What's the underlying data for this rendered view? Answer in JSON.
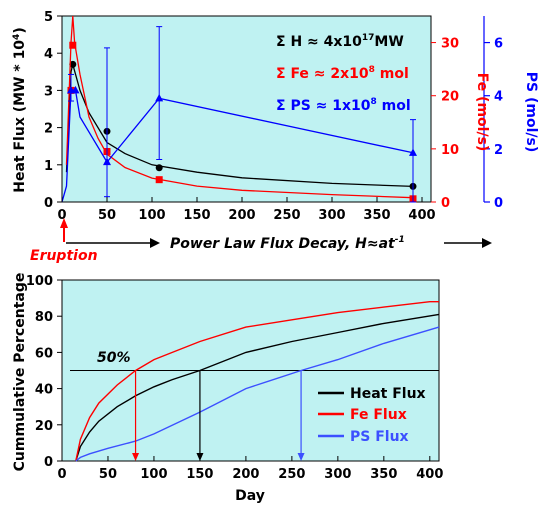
{
  "top_chart": {
    "ylabel_left": "Heat Flux (MW * 10",
    "ylabel_left_sup": "4",
    "ylabel_left_end": ")",
    "ylabel_fe": "Fe (mol/s)",
    "ylabel_ps": "PS (mol/s)",
    "annotations": {
      "h_sum": "Σ H   ≈ 4x10",
      "h_sup": "17",
      "h_unit": "MW",
      "fe_sum": "Σ Fe ≈ 2x10",
      "fe_sup": "8",
      "fe_unit": " mol",
      "ps_sum": "Σ PS ≈ 1x10",
      "ps_sup": "8",
      "ps_unit": " mol"
    },
    "eruption_label": "Eruption",
    "decay_label": "Power Law Flux Decay, H≈at",
    "decay_sup": "-1"
  },
  "bottom_chart": {
    "ylabel": "Cummulative Percentage",
    "xlabel": "Day",
    "fifty_label": "50%",
    "legend": [
      "Heat Flux",
      "Fe Flux",
      "PS Flux"
    ]
  },
  "colors": {
    "background": "#bff2f2",
    "heat": "#000000",
    "fe": "#ff0000",
    "ps": "#0000ff"
  },
  "chart_data": [
    {
      "type": "line",
      "x_ticks": [
        0,
        50,
        100,
        150,
        200,
        250,
        300,
        350,
        400
      ],
      "xlim": [
        0,
        410
      ],
      "y_left": {
        "ylim": [
          0,
          5
        ],
        "ticks": [
          0,
          1,
          2,
          3,
          4,
          5
        ]
      },
      "y_fe": {
        "ylim": [
          0,
          35
        ],
        "ticks": [
          0,
          10,
          20,
          30
        ]
      },
      "y_ps": {
        "ylim": [
          0,
          7
        ],
        "ticks": [
          0,
          2,
          4,
          6
        ]
      },
      "series": [
        {
          "name": "Heat Flux",
          "axis": "left",
          "curve": [
            [
              5,
              0.8
            ],
            [
              10,
              3.5
            ],
            [
              12,
              3.7
            ],
            [
              20,
              3.0
            ],
            [
              30,
              2.4
            ],
            [
              50,
              1.6
            ],
            [
              70,
              1.3
            ],
            [
              100,
              1.0
            ],
            [
              150,
              0.8
            ],
            [
              200,
              0.65
            ],
            [
              300,
              0.5
            ],
            [
              390,
              0.42
            ]
          ],
          "markers": [
            [
              10,
              3.0
            ],
            [
              12,
              3.7
            ],
            [
              50,
              1.9
            ],
            [
              108,
              0.92
            ],
            [
              390,
              0.42
            ]
          ]
        },
        {
          "name": "Fe Flux",
          "axis": "fe",
          "curve": [
            [
              5,
              7
            ],
            [
              10,
              30
            ],
            [
              12,
              35
            ],
            [
              14,
              30
            ],
            [
              20,
              24
            ],
            [
              30,
              16
            ],
            [
              40,
              12
            ],
            [
              50,
              9
            ],
            [
              70,
              6.5
            ],
            [
              100,
              4.5
            ],
            [
              150,
              3.0
            ],
            [
              200,
              2.2
            ],
            [
              300,
              1.4
            ],
            [
              390,
              0.8
            ]
          ],
          "markers": [
            [
              10,
              21
            ],
            [
              12,
              29.5
            ],
            [
              50,
              9.5
            ],
            [
              108,
              4.2
            ],
            [
              390,
              0.6
            ]
          ]
        },
        {
          "name": "PS Flux",
          "axis": "ps",
          "curve": [
            [
              0,
              0
            ],
            [
              5,
              0.6
            ],
            [
              10,
              4.2
            ],
            [
              15,
              4.2
            ],
            [
              20,
              3.2
            ],
            [
              50,
              1.5
            ],
            [
              108,
              3.9
            ],
            [
              390,
              1.85
            ]
          ],
          "markers": [
            [
              10,
              4.2
            ],
            [
              15,
              4.2
            ],
            [
              50,
              1.5
            ],
            [
              108,
              3.9
            ],
            [
              390,
              1.85
            ]
          ],
          "errorbars": [
            [
              10,
              3.8,
              4.8
            ],
            [
              50,
              0.2,
              5.8
            ],
            [
              108,
              1.6,
              6.6
            ],
            [
              390,
              0.0,
              3.1
            ]
          ]
        }
      ]
    },
    {
      "type": "line",
      "xlabel": "Day",
      "ylabel": "Cummulative Percentage",
      "xlim": [
        0,
        410
      ],
      "ylim": [
        0,
        100
      ],
      "x_ticks": [
        0,
        50,
        100,
        150,
        200,
        250,
        300,
        350,
        400
      ],
      "y_ticks": [
        0,
        20,
        40,
        60,
        80,
        100
      ],
      "reference_line": 50,
      "series": [
        {
          "name": "Heat Flux",
          "x": [
            15,
            20,
            30,
            40,
            60,
            80,
            100,
            120,
            150,
            200,
            250,
            300,
            350,
            410
          ],
          "y": [
            0,
            8,
            16,
            22,
            30,
            36,
            41,
            45,
            50,
            60,
            66,
            71,
            76,
            81
          ]
        },
        {
          "name": "Fe Flux",
          "x": [
            15,
            20,
            30,
            40,
            60,
            80,
            100,
            120,
            150,
            200,
            250,
            300,
            350,
            400,
            410
          ],
          "y": [
            0,
            12,
            24,
            32,
            42,
            50,
            56,
            60,
            66,
            74,
            78,
            82,
            85,
            88,
            88
          ]
        },
        {
          "name": "PS Flux",
          "x": [
            15,
            20,
            30,
            50,
            80,
            100,
            150,
            200,
            260,
            300,
            350,
            410
          ],
          "y": [
            0,
            2,
            4,
            7,
            11,
            15,
            27,
            40,
            50,
            56,
            65,
            74
          ]
        }
      ],
      "arrows": [
        {
          "series": "Fe Flux",
          "x": 80
        },
        {
          "series": "Heat Flux",
          "x": 150
        },
        {
          "series": "PS Flux",
          "x": 260
        }
      ]
    }
  ]
}
